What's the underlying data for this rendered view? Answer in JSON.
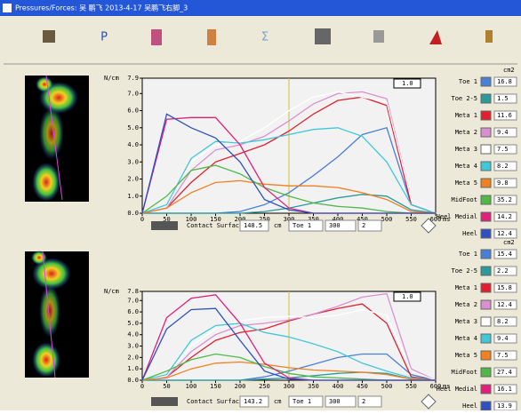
{
  "window": {
    "title": "Pressures/Forces: 吴 鹏飞 2013-4-17 吴鹏飞右脚_3"
  },
  "toolbar": {
    "p_label": "P",
    "sum_label": "Σ"
  },
  "chart_data": [
    {
      "type": "line",
      "y_unit": "N/cm",
      "x_unit": "ms",
      "area_unit": "cm2",
      "x": [
        0,
        50,
        100,
        150,
        200,
        250,
        300,
        350,
        400,
        450,
        500,
        550,
        600
      ],
      "xlim": [
        0,
        600
      ],
      "xticks": [
        0,
        50,
        100,
        150,
        200,
        250,
        300,
        350,
        400,
        450,
        500,
        550,
        600
      ],
      "ylim": [
        0,
        7.9
      ],
      "yticks": [
        {
          "value": 0,
          "label": "0.0"
        },
        {
          "value": 1,
          "label": "1.0"
        },
        {
          "value": 2,
          "label": "2.0"
        },
        {
          "value": 3,
          "label": "3.0"
        },
        {
          "value": 4,
          "label": "4.0"
        },
        {
          "value": 5,
          "label": "5.0"
        },
        {
          "value": 6,
          "label": "6.0"
        },
        {
          "value": 7,
          "label": "7.0"
        },
        7.9
      ],
      "zoom": "1.0",
      "controls": {
        "label": "Contact Surface",
        "contact_surface": 148.5,
        "unit": "cm",
        "selected": "Toe 1",
        "cursor_time": 300,
        "step": 2
      },
      "series": [
        {
          "name": "Toe 1",
          "color": "#4a7fd6",
          "area": 16.8,
          "values": [
            0,
            0,
            0,
            0,
            0.1,
            0.5,
            1.2,
            2.2,
            3.3,
            4.6,
            5.0,
            0.5,
            0
          ]
        },
        {
          "name": "Toe 2-5",
          "color": "#2a9a9a",
          "area": 1.5,
          "values": [
            0,
            0,
            0,
            0,
            0,
            0.1,
            0.3,
            0.6,
            0.9,
            1.1,
            1.0,
            0.2,
            0
          ]
        },
        {
          "name": "Meta 1",
          "color": "#e02030",
          "area": 11.6,
          "values": [
            0,
            0.3,
            1.8,
            3.0,
            3.5,
            4.0,
            4.8,
            5.8,
            6.6,
            6.8,
            6.3,
            0.5,
            0
          ]
        },
        {
          "name": "Meta 2",
          "color": "#d890d0",
          "area": 9.4,
          "values": [
            0,
            0.3,
            2.5,
            3.7,
            4.0,
            4.5,
            5.4,
            6.4,
            7.0,
            7.1,
            6.7,
            0.8,
            0
          ]
        },
        {
          "name": "Meta 3",
          "color": "#ffffff",
          "area": 7.5,
          "values": [
            0,
            0.5,
            3.0,
            4.0,
            4.2,
            5.0,
            6.0,
            6.8,
            7.1,
            6.8,
            6.5,
            0.8,
            0
          ]
        },
        {
          "name": "Meta 4",
          "color": "#40c8d8",
          "area": 8.2,
          "values": [
            0,
            0.5,
            3.2,
            4.2,
            4.1,
            4.3,
            4.6,
            4.9,
            5.0,
            4.5,
            3.0,
            0.5,
            0
          ]
        },
        {
          "name": "Meta 5",
          "color": "#f08020",
          "area": 9.8,
          "values": [
            0,
            0.3,
            1.2,
            1.8,
            1.9,
            1.7,
            1.6,
            1.6,
            1.5,
            1.2,
            0.8,
            0.1,
            0
          ]
        },
        {
          "name": "MidFoot",
          "color": "#50b848",
          "area": 35.2,
          "values": [
            0,
            1.0,
            2.5,
            2.8,
            2.3,
            1.5,
            1.0,
            0.6,
            0.4,
            0.3,
            0.1,
            0,
            0
          ]
        },
        {
          "name": "Heel Medial",
          "color": "#e0207a",
          "area": 14.2,
          "values": [
            0,
            5.5,
            5.6,
            5.6,
            4.0,
            1.5,
            0.3,
            0,
            0,
            0,
            0,
            0,
            0
          ]
        },
        {
          "name": "Heel",
          "color": "#3050c0",
          "area": 12.4,
          "values": [
            0,
            5.8,
            5.0,
            4.4,
            3.0,
            0.8,
            0.2,
            0,
            0,
            0,
            0,
            0,
            0
          ]
        }
      ]
    },
    {
      "type": "line",
      "y_unit": "N/cm",
      "x_unit": "ms",
      "area_unit": "cm2",
      "x": [
        0,
        50,
        100,
        150,
        200,
        250,
        300,
        350,
        400,
        450,
        500,
        550,
        600
      ],
      "xlim": [
        0,
        600
      ],
      "xticks": [
        0,
        50,
        100,
        150,
        200,
        250,
        300,
        350,
        400,
        450,
        500,
        550,
        600
      ],
      "ylim": [
        0,
        7.8
      ],
      "yticks": [
        {
          "value": 0,
          "label": "0.0"
        },
        {
          "value": 1,
          "label": "1.0"
        },
        {
          "value": 2,
          "label": "2.0"
        },
        {
          "value": 3,
          "label": "3.0"
        },
        {
          "value": 4,
          "label": "4.0"
        },
        {
          "value": 5,
          "label": "5.0"
        },
        {
          "value": 6,
          "label": "6.0"
        },
        {
          "value": 7,
          "label": "7.0"
        },
        7.8
      ],
      "zoom": "1.0",
      "controls": {
        "label": "Contact Surface",
        "contact_surface": 143.2,
        "unit": "cm",
        "selected": "Toe 1",
        "cursor_time": 300,
        "step": 2
      },
      "series": [
        {
          "name": "Toe 1",
          "color": "#4a7fd6",
          "area": 15.4,
          "values": [
            0,
            0,
            0,
            0,
            0,
            0.3,
            0.8,
            1.4,
            2.0,
            2.3,
            2.3,
            0.5,
            0
          ]
        },
        {
          "name": "Toe 2-5",
          "color": "#2a9a9a",
          "area": 2.2,
          "values": [
            0,
            0,
            0,
            0,
            0,
            0.1,
            0.2,
            0.4,
            0.6,
            0.7,
            0.6,
            0.1,
            0
          ]
        },
        {
          "name": "Meta 1",
          "color": "#e02030",
          "area": 15.8,
          "values": [
            0,
            0.3,
            2.0,
            3.5,
            4.2,
            4.5,
            5.2,
            5.8,
            6.3,
            6.7,
            5.0,
            0.3,
            0
          ]
        },
        {
          "name": "Meta 2",
          "color": "#d890d0",
          "area": 12.4,
          "values": [
            0,
            0.3,
            2.5,
            4.0,
            4.8,
            5.0,
            5.3,
            5.8,
            6.5,
            7.3,
            7.6,
            1.0,
            0
          ]
        },
        {
          "name": "Meta 3",
          "color": "#ffffff",
          "area": 8.2,
          "values": [
            0,
            0.4,
            3.0,
            4.5,
            5.2,
            5.5,
            5.6,
            5.5,
            5.7,
            6.2,
            5.7,
            0.8,
            0
          ]
        },
        {
          "name": "Meta 4",
          "color": "#40c8d8",
          "area": 9.4,
          "values": [
            0,
            0.5,
            3.5,
            4.8,
            5.0,
            4.2,
            3.8,
            3.2,
            2.5,
            1.5,
            0.8,
            0.2,
            0
          ]
        },
        {
          "name": "Meta 5",
          "color": "#f08020",
          "area": 7.5,
          "values": [
            0,
            0.2,
            1.0,
            1.5,
            1.6,
            1.4,
            1.1,
            0.9,
            0.8,
            0.7,
            0.5,
            0.1,
            0
          ]
        },
        {
          "name": "MidFoot",
          "color": "#50b848",
          "area": 27.4,
          "values": [
            0,
            0.8,
            1.8,
            2.3,
            2.0,
            1.2,
            0.6,
            0.3,
            0.2,
            0.1,
            0,
            0,
            0
          ]
        },
        {
          "name": "Heel Medial",
          "color": "#e0207a",
          "area": 16.1,
          "values": [
            0,
            5.5,
            7.2,
            7.5,
            5.0,
            1.5,
            0.2,
            0,
            0,
            0,
            0,
            0,
            0
          ]
        },
        {
          "name": "Heel",
          "color": "#3050c0",
          "area": 13.9,
          "values": [
            0,
            4.5,
            6.2,
            6.3,
            3.5,
            0.8,
            0.1,
            0,
            0,
            0,
            0,
            0,
            0
          ]
        }
      ]
    }
  ]
}
